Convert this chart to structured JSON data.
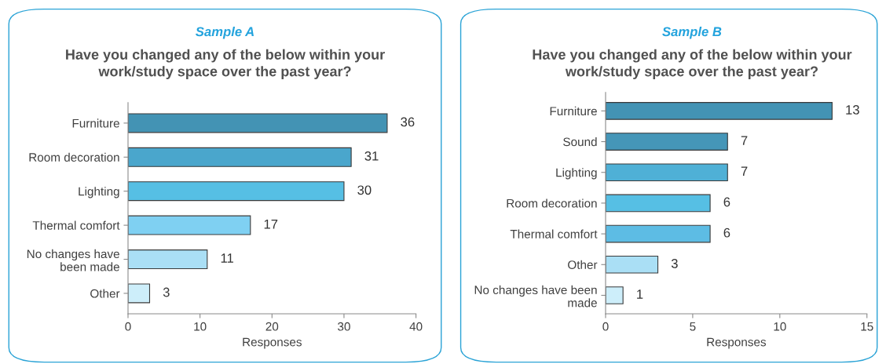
{
  "chart_data": [
    {
      "type": "bar",
      "orientation": "horizontal",
      "title": "Sample A",
      "subtitle": "Have you changed any of the below within your\nwork/study space over the past year?",
      "xlabel": "Responses",
      "categories": [
        "Furniture",
        "Room decoration",
        "Lighting",
        "Thermal comfort",
        "No changes have\nbeen made",
        "Other"
      ],
      "values": [
        36,
        31,
        30,
        17,
        11,
        3
      ],
      "colors": [
        "#4393b4",
        "#4aa6cc",
        "#56bfe4",
        "#7fd0f2",
        "#aadff5",
        "#cdeefa"
      ],
      "xlim": [
        0,
        40
      ],
      "xticks": [
        0,
        10,
        20,
        30,
        40
      ],
      "data_labels": true,
      "grid": false,
      "legend": false
    },
    {
      "type": "bar",
      "orientation": "horizontal",
      "title": "Sample B",
      "subtitle": "Have you changed any of the below within your\nwork/study space over the past year?",
      "xlabel": "Responses",
      "categories": [
        "Furniture",
        "Sound",
        "Lighting",
        "Room decoration",
        "Thermal comfort",
        "Other",
        "No changes have been\nmade"
      ],
      "values": [
        13,
        7,
        7,
        6,
        6,
        3,
        1
      ],
      "colors": [
        "#4393b4",
        "#4596b8",
        "#4fb0d6",
        "#56bfe4",
        "#5dbce4",
        "#aadff5",
        "#cdeefa"
      ],
      "xlim": [
        0,
        15
      ],
      "xticks": [
        0,
        5,
        10,
        15
      ],
      "data_labels": true,
      "grid": false,
      "legend": false
    }
  ]
}
